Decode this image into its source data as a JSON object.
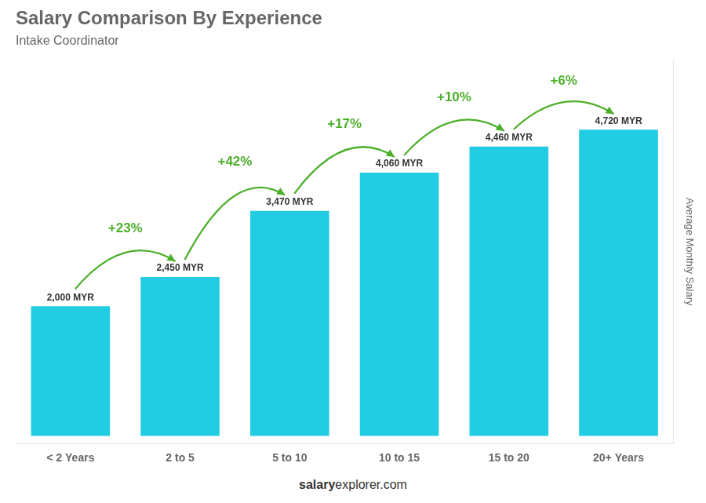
{
  "chart_data": {
    "type": "bar",
    "title": "Salary Comparison By Experience",
    "subtitle": "Intake Coordinator",
    "ylabel": "Average Monthly Salary",
    "categories": [
      "< 2 Years",
      "2 to 5",
      "5 to 10",
      "10 to 15",
      "15 to 20",
      "20+ Years"
    ],
    "values": [
      2000,
      2450,
      3470,
      4060,
      4460,
      4720
    ],
    "value_labels": [
      "2,000 MYR",
      "2,450 MYR",
      "3,470 MYR",
      "4,060 MYR",
      "4,460 MYR",
      "4,720 MYR"
    ],
    "data_labels": true,
    "annotations": [
      "+23%",
      "+42%",
      "+17%",
      "+10%",
      "+6%"
    ],
    "footer": [
      "salary",
      "explorer.com"
    ],
    "color": "#22cce2",
    "ylim": [
      -116,
      5800
    ],
    "grid": false,
    "legend": false,
    "tick_labels": "x"
  }
}
